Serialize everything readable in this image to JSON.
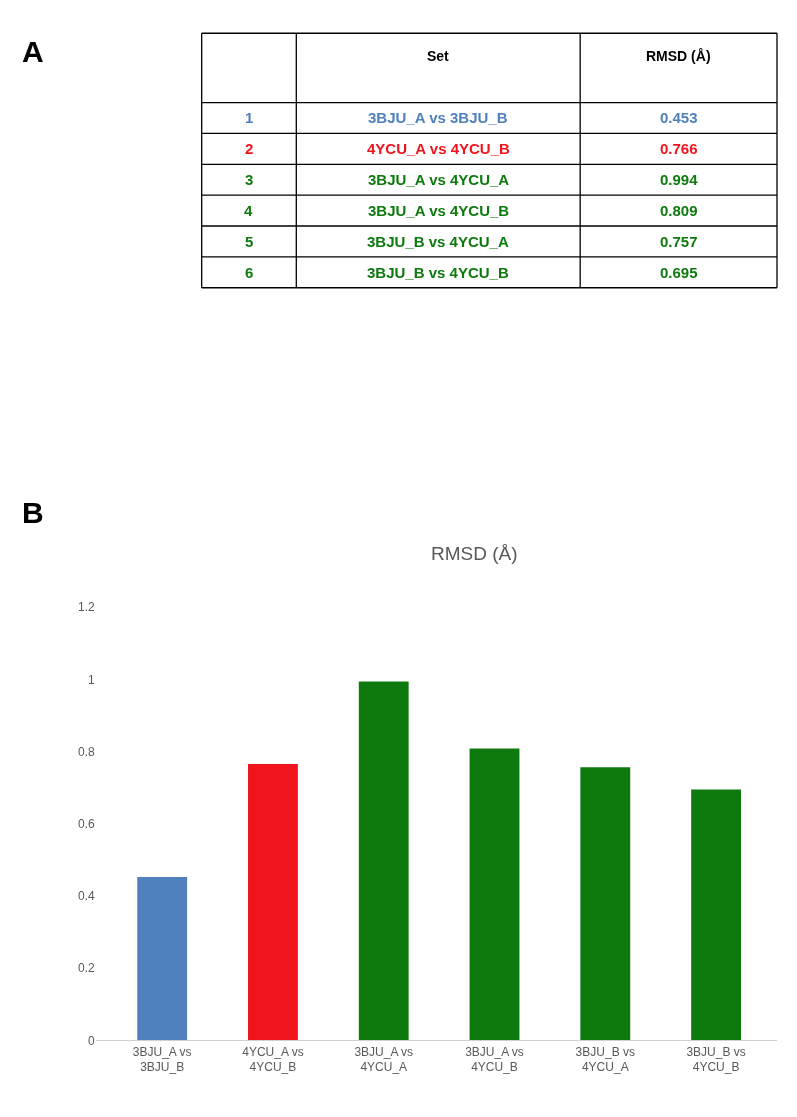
{
  "chart_data": {
    "type": "bar",
    "title": "RMSD (Å)",
    "annotations": [
      "A",
      "B",
      "Set",
      "1",
      "2",
      "3",
      "4",
      "5",
      "6",
      "0.453",
      "0.766",
      "0.994",
      "0.809",
      "0.757",
      "0.695"
    ],
    "categories": [
      "3BJU_A vs 3BJU_B",
      "4YCU_A vs 4YCU_B",
      "3BJU_A vs 4YCU_A",
      "3BJU_A vs 4YCU_B",
      "3BJU_B vs 4YCU_A",
      "3BJU_B vs 4YCU_B"
    ],
    "values": [
      0.453,
      0.766,
      0.994,
      0.809,
      0.757,
      0.695
    ],
    "colors": [
      "#4f81bd",
      "#f0141e",
      "#0e7a0e",
      "#0e7a0e",
      "#0e7a0e",
      "#0e7a0e"
    ],
    "ylim": [
      0,
      1.2
    ],
    "yticks": [
      0,
      0.2,
      0.4,
      0.6,
      0.8,
      1,
      1.2
    ]
  }
}
